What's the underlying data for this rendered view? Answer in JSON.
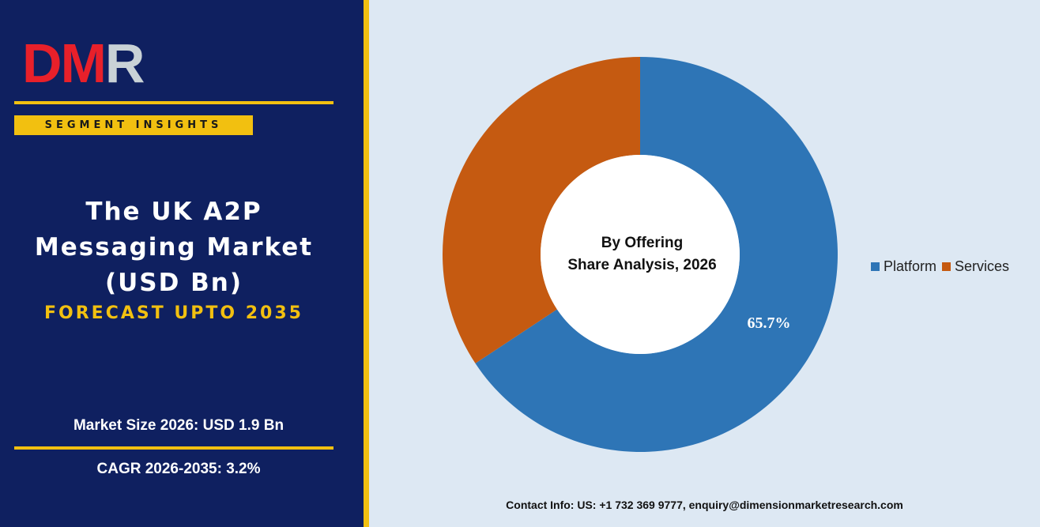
{
  "brand": {
    "logo_text": "DMR",
    "tag": "SEGMENT INSIGHTS"
  },
  "report": {
    "title_line1": "The UK A2P",
    "title_line2": "Messaging Market",
    "title_line3": "(USD Bn)",
    "forecast": "FORECAST UPTO 2035",
    "market_size": "Market Size 2026: USD 1.9 Bn",
    "cagr": "CAGR 2026-2035: 3.2%"
  },
  "colors": {
    "panel": "#0f2060",
    "accent": "#f2c010",
    "platform": "#2e75b6",
    "services": "#c55a11",
    "background": "#dde8f3"
  },
  "chart_data": {
    "type": "pie",
    "variant": "donut",
    "center_title": "By Offering",
    "center_subtitle": "Share Analysis, 2026",
    "categories": [
      "Platform",
      "Services"
    ],
    "values": [
      65.7,
      34.3
    ],
    "data_labels": [
      "65.7%",
      ""
    ],
    "legend_placement": "right"
  },
  "footer": {
    "contact": "Contact Info: US: +1 732 369 9777, enquiry@dimensionmarketresearch.com"
  }
}
